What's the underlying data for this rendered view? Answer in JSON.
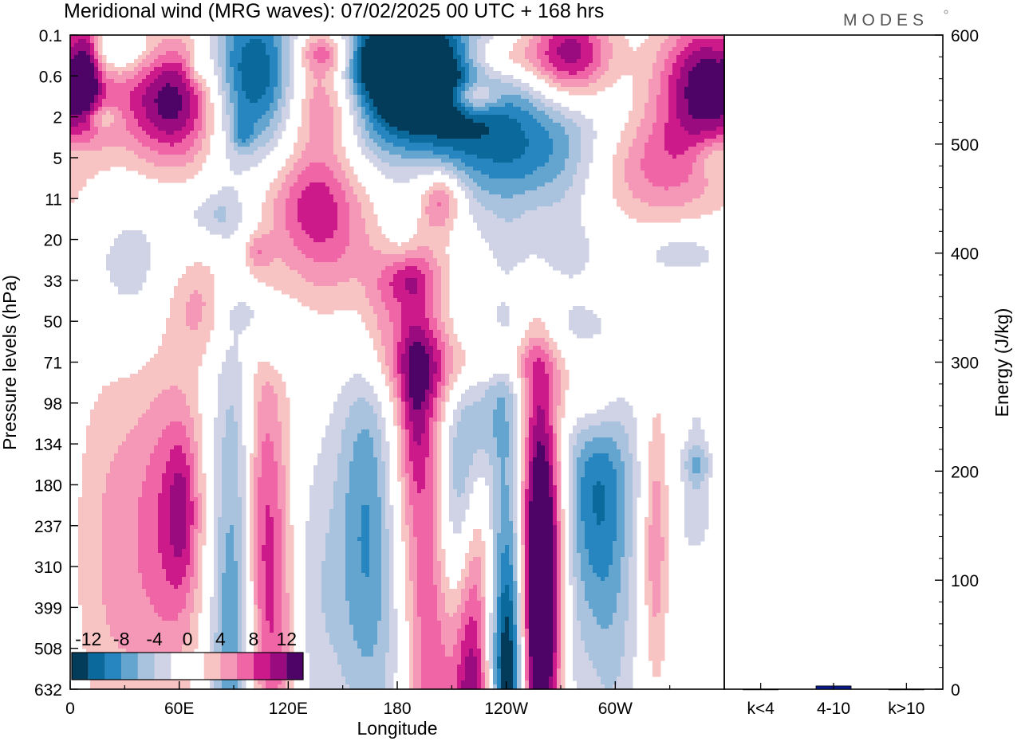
{
  "header": {
    "title": "Meridional wind (MRG waves):  07/02/2025  00 UTC  + 168 hrs",
    "brand": "MODES"
  },
  "colors": {
    "scale": [
      "#023c5a",
      "#0b6a9b",
      "#2786c0",
      "#64a5cf",
      "#a9c3de",
      "#cfd3e5",
      "#ffffff",
      "#ffffff",
      "#f8c3c3",
      "#f597b6",
      "#ef65a6",
      "#cd1a8b",
      "#9a0b80",
      "#4d0466"
    ]
  },
  "chart_data": [
    {
      "type": "heatmap",
      "title": "Meridional wind (MRG waves):  07/02/2025  00 UTC  + 168 hrs",
      "xlabel": "Longitude",
      "ylabel": "Pressure levels (hPa)",
      "x_ticks": [
        "0",
        "60E",
        "120E",
        "180",
        "120W",
        "60W"
      ],
      "x_tick_degrees": [
        0,
        60,
        120,
        180,
        240,
        300
      ],
      "xlim": [
        0,
        360
      ],
      "y_ticks": [
        "0.1",
        "0.6",
        "2",
        "5",
        "11",
        "20",
        "33",
        "50",
        "71",
        "98",
        "134",
        "180",
        "237",
        "310",
        "399",
        "508",
        "632"
      ],
      "colorbar": {
        "labels": [
          "-12",
          "-8",
          "-4",
          "0",
          "4",
          "8",
          "12"
        ],
        "levels": [
          -12,
          -8,
          -4,
          0,
          4,
          8,
          12
        ]
      },
      "blobs": [
        {
          "lon": 9,
          "lev": 0.8,
          "rx": 5,
          "ry": 0.8,
          "v": 8
        },
        {
          "lon": 26,
          "lev": 0.4,
          "rx": 14,
          "ry": 0.4,
          "v": -6
        },
        {
          "lon": 18,
          "lev": 2.0,
          "rx": 6,
          "ry": 0.2,
          "v": -4
        },
        {
          "lon": 58,
          "lev": 1.6,
          "rx": 20,
          "ry": 1.1,
          "v": 14
        },
        {
          "lon": 71,
          "lev": 0.8,
          "rx": 4,
          "ry": 0.3,
          "v": -4
        },
        {
          "lon": 80,
          "lev": 4.4,
          "rx": 12,
          "ry": 0.4,
          "v": -3.5
        },
        {
          "lon": 100,
          "lev": 1.0,
          "rx": 20,
          "ry": 1.4,
          "v": -13
        },
        {
          "lon": 95,
          "lev": 2.4,
          "rx": 4,
          "ry": 0.3,
          "v": -4
        },
        {
          "lon": 140,
          "lev": 0.4,
          "rx": 12,
          "ry": 0.4,
          "v": 9
        },
        {
          "lon": 140,
          "lev": 1.5,
          "rx": 16,
          "ry": 0.9,
          "v": 11
        },
        {
          "lon": 134,
          "lev": 4.0,
          "rx": 18,
          "ry": 1.0,
          "v": 8
        },
        {
          "lon": 150,
          "lev": 5.5,
          "rx": 24,
          "ry": 1.2,
          "v": 4.5
        },
        {
          "lon": 170,
          "lev": 6.8,
          "rx": 10,
          "ry": 1.0,
          "v": 3.5
        },
        {
          "lon": 182,
          "lev": 0.5,
          "rx": 26,
          "ry": 0.7,
          "v": -14
        },
        {
          "lon": 190,
          "lev": 1.5,
          "rx": 30,
          "ry": 1.1,
          "v": -16
        },
        {
          "lon": 182,
          "lev": 4.6,
          "rx": 8,
          "ry": 0.6,
          "v": -4
        },
        {
          "lon": 205,
          "lev": 4.0,
          "rx": 8,
          "ry": 0.5,
          "v": 7
        },
        {
          "lon": 230,
          "lev": 0.6,
          "rx": 18,
          "ry": 0.4,
          "v": 7
        },
        {
          "lon": 222,
          "lev": 1.5,
          "rx": 10,
          "ry": 0.3,
          "v": 10
        },
        {
          "lon": 255,
          "lev": 2.8,
          "rx": 36,
          "ry": 1.2,
          "v": -10
        },
        {
          "lon": 262,
          "lev": 5.3,
          "rx": 18,
          "ry": 0.6,
          "v": -3.5
        },
        {
          "lon": 258,
          "lev": 7.2,
          "rx": 26,
          "ry": 0.6,
          "v": -3.5
        },
        {
          "lon": 275,
          "lev": 0.5,
          "rx": 16,
          "ry": 0.8,
          "v": 12
        },
        {
          "lon": 318,
          "lev": 3.2,
          "rx": 30,
          "ry": 1.0,
          "v": 8
        },
        {
          "lon": 352,
          "lev": 1.2,
          "rx": 20,
          "ry": 1.1,
          "v": 14
        },
        {
          "lon": 355,
          "lev": 3.0,
          "rx": 10,
          "ry": 0.4,
          "v": -4
        },
        {
          "lon": 34,
          "lev": 5.8,
          "rx": 18,
          "ry": 1.4,
          "v": -3.5
        },
        {
          "lon": 72,
          "lev": 6.6,
          "rx": 14,
          "ry": 0.9,
          "v": 4.5
        },
        {
          "lon": 102,
          "lev": 6.8,
          "rx": 12,
          "ry": 0.4,
          "v": -3.5
        },
        {
          "lon": 103,
          "lev": 5.3,
          "rx": 5,
          "ry": 0.3,
          "v": 4
        },
        {
          "lon": 118,
          "lev": 7.7,
          "rx": 10,
          "ry": 0.4,
          "v": -3.5
        },
        {
          "lon": 186,
          "lev": 6.0,
          "rx": 10,
          "ry": 0.4,
          "v": 4
        },
        {
          "lon": 220,
          "lev": 8.1,
          "rx": 38,
          "ry": 0.7,
          "v": 5.5
        },
        {
          "lon": 236,
          "lev": 8.6,
          "rx": 14,
          "ry": 0.4,
          "v": -3.5
        },
        {
          "lon": 235,
          "lev": 9.3,
          "rx": 12,
          "ry": 0.8,
          "v": -3.5
        },
        {
          "lon": 288,
          "lev": 8.9,
          "rx": 10,
          "ry": 0.8,
          "v": 4.5
        },
        {
          "lon": 335,
          "lev": 5.3,
          "rx": 18,
          "ry": 0.4,
          "v": -3.5
        },
        {
          "lon": 345,
          "lev": 10.5,
          "rx": 6,
          "ry": 0.3,
          "v": -3.5
        },
        {
          "lon": 25,
          "lev": 12.6,
          "rx": 16,
          "ry": 3.6,
          "v": 4.5
        },
        {
          "lon": 55,
          "lev": 12.0,
          "rx": 13,
          "ry": 2.8,
          "v": 7
        },
        {
          "lon": 62,
          "lev": 11.6,
          "rx": 6,
          "ry": 1.4,
          "v": 5
        },
        {
          "lon": 86,
          "lev": 12.8,
          "rx": 7,
          "ry": 4.8,
          "v": -5
        },
        {
          "lon": 95,
          "lev": 11.2,
          "rx": 6,
          "ry": 2.8,
          "v": -4
        },
        {
          "lon": 107,
          "lev": 12.0,
          "rx": 10,
          "ry": 3.2,
          "v": 8
        },
        {
          "lon": 114,
          "lev": 15.6,
          "rx": 9,
          "ry": 2.6,
          "v": 4.5
        },
        {
          "lon": 92,
          "lev": 15.6,
          "rx": 9,
          "ry": 2.2,
          "v": -4
        },
        {
          "lon": 135,
          "lev": 13.8,
          "rx": 14,
          "ry": 2.8,
          "v": -3.5
        },
        {
          "lon": 164,
          "lev": 11.8,
          "rx": 12,
          "ry": 3.6,
          "v": -8
        },
        {
          "lon": 182,
          "lev": 14.5,
          "rx": 13,
          "ry": 3.5,
          "v": -4
        },
        {
          "lon": 193,
          "lev": 11.2,
          "rx": 15,
          "ry": 4.6,
          "v": 9
        },
        {
          "lon": 190,
          "lev": 8.8,
          "rx": 6,
          "ry": 1.6,
          "v": 4.5
        },
        {
          "lon": 199,
          "lev": 16.0,
          "rx": 8,
          "ry": 2.5,
          "v": 4.5
        },
        {
          "lon": 215,
          "lev": 11.8,
          "rx": 9,
          "ry": 2.7,
          "v": -13
        },
        {
          "lon": 224,
          "lev": 12.8,
          "rx": 7,
          "ry": 1.6,
          "v": 5.5
        },
        {
          "lon": 218,
          "lev": 14.8,
          "rx": 8,
          "ry": 2.8,
          "v": 10
        },
        {
          "lon": 223,
          "lev": 16.6,
          "rx": 6,
          "ry": 1.5,
          "v": 6
        },
        {
          "lon": 245,
          "lev": 13.6,
          "rx": 9,
          "ry": 3.6,
          "v": -16
        },
        {
          "lon": 241,
          "lev": 15.8,
          "rx": 6,
          "ry": 1.6,
          "v": -7
        },
        {
          "lon": 254,
          "lev": 11.4,
          "rx": 9,
          "ry": 3.3,
          "v": 14
        },
        {
          "lon": 263,
          "lev": 12.7,
          "rx": 8,
          "ry": 2.6,
          "v": 8
        },
        {
          "lon": 256,
          "lev": 15.4,
          "rx": 9,
          "ry": 2.5,
          "v": 13
        },
        {
          "lon": 272,
          "lev": 14.4,
          "rx": 8,
          "ry": 2.8,
          "v": -3.5
        },
        {
          "lon": 290,
          "lev": 10.6,
          "rx": 15,
          "ry": 1.8,
          "v": -7
        },
        {
          "lon": 289,
          "lev": 13.0,
          "rx": 10,
          "ry": 2.2,
          "v": -3.5
        },
        {
          "lon": 300,
          "lev": 14.5,
          "rx": 10,
          "ry": 2.8,
          "v": -3.5
        },
        {
          "lon": 322,
          "lev": 12.4,
          "rx": 5,
          "ry": 2.4,
          "v": 6
        },
        {
          "lon": 345,
          "lev": 12.0,
          "rx": 6,
          "ry": 2.4,
          "v": -4
        },
        {
          "lon": 345,
          "lev": 13.5,
          "rx": 4,
          "ry": 0.8,
          "v": 4
        }
      ]
    },
    {
      "type": "bar",
      "categories": [
        "k<4",
        "4-10",
        "k>10"
      ],
      "values": [
        0,
        3,
        0
      ],
      "ylabel": "Energy (J/kg)",
      "ylim": [
        0,
        600
      ],
      "y_ticks": [
        "0",
        "100",
        "200",
        "300",
        "400",
        "500",
        "600"
      ]
    }
  ]
}
